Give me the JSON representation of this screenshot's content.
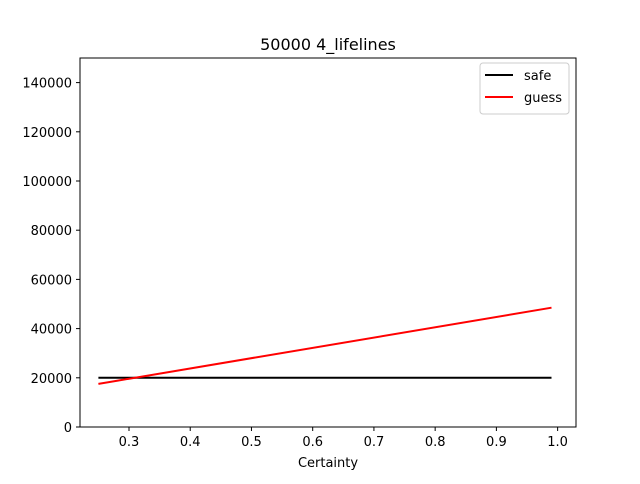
{
  "chart_data": {
    "type": "line",
    "title": "50000 4_lifelines",
    "xlabel": "Certainty",
    "ylabel": "",
    "xlim": [
      0.22,
      1.03
    ],
    "ylim": [
      0,
      150000
    ],
    "xticks": [
      0.3,
      0.4,
      0.5,
      0.6,
      0.7,
      0.8,
      0.9,
      1.0
    ],
    "xtick_labels": [
      "0.3",
      "0.4",
      "0.5",
      "0.6",
      "0.7",
      "0.8",
      "0.9",
      "1.0"
    ],
    "yticks": [
      0,
      20000,
      40000,
      60000,
      80000,
      100000,
      120000,
      140000
    ],
    "ytick_labels": [
      "0",
      "20000",
      "40000",
      "60000",
      "80000",
      "100000",
      "120000",
      "140000"
    ],
    "grid": false,
    "legend_position": "upper right",
    "series": [
      {
        "name": "safe",
        "color": "#000000",
        "x": [
          0.25,
          0.99
        ],
        "y": [
          20000,
          20000
        ]
      },
      {
        "name": "guess",
        "color": "#ff0000",
        "x": [
          0.25,
          0.99
        ],
        "y": [
          17500,
          48500
        ]
      }
    ]
  }
}
